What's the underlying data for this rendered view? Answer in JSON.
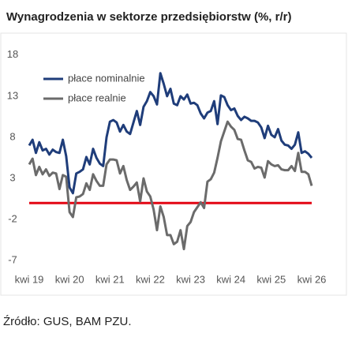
{
  "chart_data": {
    "type": "line",
    "title": "Wynagrodzenia w sektorze przedsiębiorstw (%, r/r)",
    "source": "Źródło: GUS, BAM PZU.",
    "categories": [
      "kwi 19",
      null,
      null,
      null,
      null,
      null,
      null,
      null,
      null,
      null,
      null,
      null,
      "kwi 20",
      null,
      null,
      null,
      null,
      null,
      null,
      null,
      null,
      null,
      null,
      null,
      "kwi 21",
      null,
      null,
      null,
      null,
      null,
      null,
      null,
      null,
      null,
      null,
      null,
      "kwi 22",
      null,
      null,
      null,
      null,
      null,
      null,
      null,
      null,
      null,
      null,
      null,
      "kwi 23",
      null,
      null,
      null,
      null,
      null,
      null,
      null,
      null,
      null,
      null,
      null,
      "kwi 24",
      null,
      null,
      null,
      null,
      null,
      null,
      null,
      null,
      null,
      null,
      null,
      "kwi 25",
      null,
      null,
      null,
      null,
      null,
      null,
      null,
      null,
      null,
      null,
      null,
      "kwi 26"
    ],
    "series": [
      {
        "name": "płace nominalnie",
        "color": "#1f3d7a",
        "values": [
          7.0,
          7.7,
          6.1,
          7.4,
          6.4,
          6.6,
          5.9,
          6.5,
          6.2,
          6.1,
          7.7,
          5.7,
          1.9,
          1.2,
          3.6,
          3.8,
          4.1,
          5.6,
          4.7,
          6.6,
          5.5,
          4.8,
          4.5,
          8.0,
          9.9,
          10.1,
          9.8,
          8.7,
          9.5,
          8.7,
          8.4,
          9.8,
          11.2,
          9.5,
          11.7,
          12.4,
          13.5,
          13.0,
          12.0,
          15.8,
          14.5,
          13.0,
          13.9,
          12.1,
          11.9,
          13.0,
          12.6,
          13.2,
          12.1,
          12.2,
          11.9,
          10.9,
          10.3,
          11.0,
          11.2,
          12.4,
          9.6,
          13.1,
          12.9,
          11.9,
          11.3,
          11.5,
          10.6,
          10.1,
          10.5,
          10.3,
          10.0,
          10.0,
          9.8,
          9.2,
          7.9,
          9.4,
          8.3,
          8.0,
          9.0,
          7.6,
          7.1,
          7.0,
          6.6,
          7.1,
          8.6,
          6.1,
          6.3,
          6.0,
          5.5
        ]
      },
      {
        "name": "płace realnie",
        "color": "#6b6b6b",
        "values": [
          4.7,
          5.4,
          3.4,
          4.4,
          3.5,
          4.1,
          3.3,
          3.7,
          3.6,
          1.7,
          3.4,
          3.2,
          -1.1,
          -1.7,
          0.7,
          0.8,
          1.1,
          2.4,
          1.6,
          3.5,
          2.7,
          2.1,
          2.1,
          4.7,
          5.3,
          5.3,
          5.2,
          3.6,
          4.5,
          2.8,
          1.6,
          2.0,
          2.5,
          0.2,
          3.0,
          1.4,
          0.8,
          -0.8,
          -3.3,
          -0.4,
          -1.7,
          -3.9,
          -3.9,
          -5.0,
          -4.7,
          -3.3,
          -5.6,
          -2.8,
          -2.3,
          -1.1,
          -0.5,
          0.1,
          -0.6,
          2.6,
          2.9,
          3.7,
          5.5,
          7.5,
          8.7,
          9.9,
          9.3,
          8.9,
          7.8,
          7.7,
          6.4,
          5.2,
          5.0,
          4.2,
          4.4,
          4.3,
          3.1,
          5.1,
          4.7,
          4.5,
          4.6,
          4.1,
          4.0,
          4.0,
          4.5,
          3.9,
          6.1,
          3.8,
          3.8,
          3.5,
          2.1
        ]
      }
    ],
    "reference_line": {
      "value": 0,
      "color": "#e30613"
    },
    "ylim": [
      -7,
      18
    ],
    "yticks": [
      -7,
      -2,
      3,
      8,
      13,
      18
    ],
    "grid": false,
    "legend": "top-left"
  }
}
